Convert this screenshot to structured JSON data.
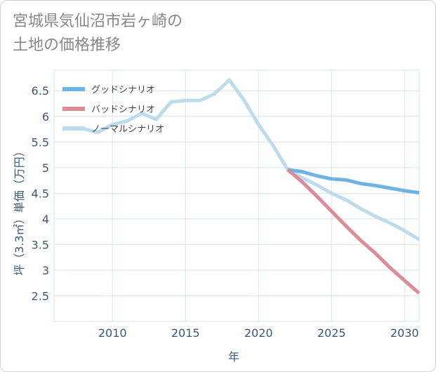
{
  "chart_data": {
    "type": "line",
    "title": "宮城県気仙沼市岩ヶ崎の\n土地の価格推移",
    "xlabel": "年",
    "ylabel": "坪（3.3㎡）単価（万円）",
    "xlim": [
      2006,
      2031
    ],
    "ylim": [
      2.0,
      6.9
    ],
    "x_ticks": [
      "2010",
      "2015",
      "2020",
      "2025",
      "2030"
    ],
    "y_ticks": [
      "2.5",
      "3",
      "3.5",
      "4",
      "4.5",
      "5",
      "5.5",
      "6",
      "6.5"
    ],
    "grid": true,
    "legend_position": "top-left",
    "series": [
      {
        "name": "グッドシナリオ",
        "color": "#6cb4e4",
        "x": [
          2022,
          2023,
          2024,
          2025,
          2026,
          2027,
          2028,
          2029,
          2030,
          2031
        ],
        "values": [
          4.96,
          4.92,
          4.84,
          4.78,
          4.76,
          4.69,
          4.65,
          4.6,
          4.55,
          4.51
        ]
      },
      {
        "name": "バッドシナリオ",
        "color": "#dc8c94",
        "x": [
          2022,
          2023,
          2024,
          2025,
          2026,
          2027,
          2028,
          2029,
          2030,
          2031
        ],
        "values": [
          4.96,
          4.72,
          4.44,
          4.15,
          3.86,
          3.58,
          3.33,
          3.05,
          2.8,
          2.55
        ]
      },
      {
        "name": "ノーマルシナリオ",
        "color": "#bcdcec",
        "x": [
          2008,
          2009,
          2010,
          2011,
          2012,
          2013,
          2014,
          2015,
          2016,
          2017,
          2018,
          2019,
          2020,
          2021,
          2022,
          2023,
          2024,
          2025,
          2026,
          2027,
          2028,
          2029,
          2030,
          2031
        ],
        "values": [
          5.76,
          5.69,
          5.84,
          5.91,
          6.06,
          5.94,
          6.28,
          6.31,
          6.31,
          6.44,
          6.71,
          6.32,
          5.84,
          5.43,
          4.96,
          4.8,
          4.66,
          4.5,
          4.37,
          4.2,
          4.05,
          3.92,
          3.77,
          3.6
        ]
      }
    ]
  }
}
